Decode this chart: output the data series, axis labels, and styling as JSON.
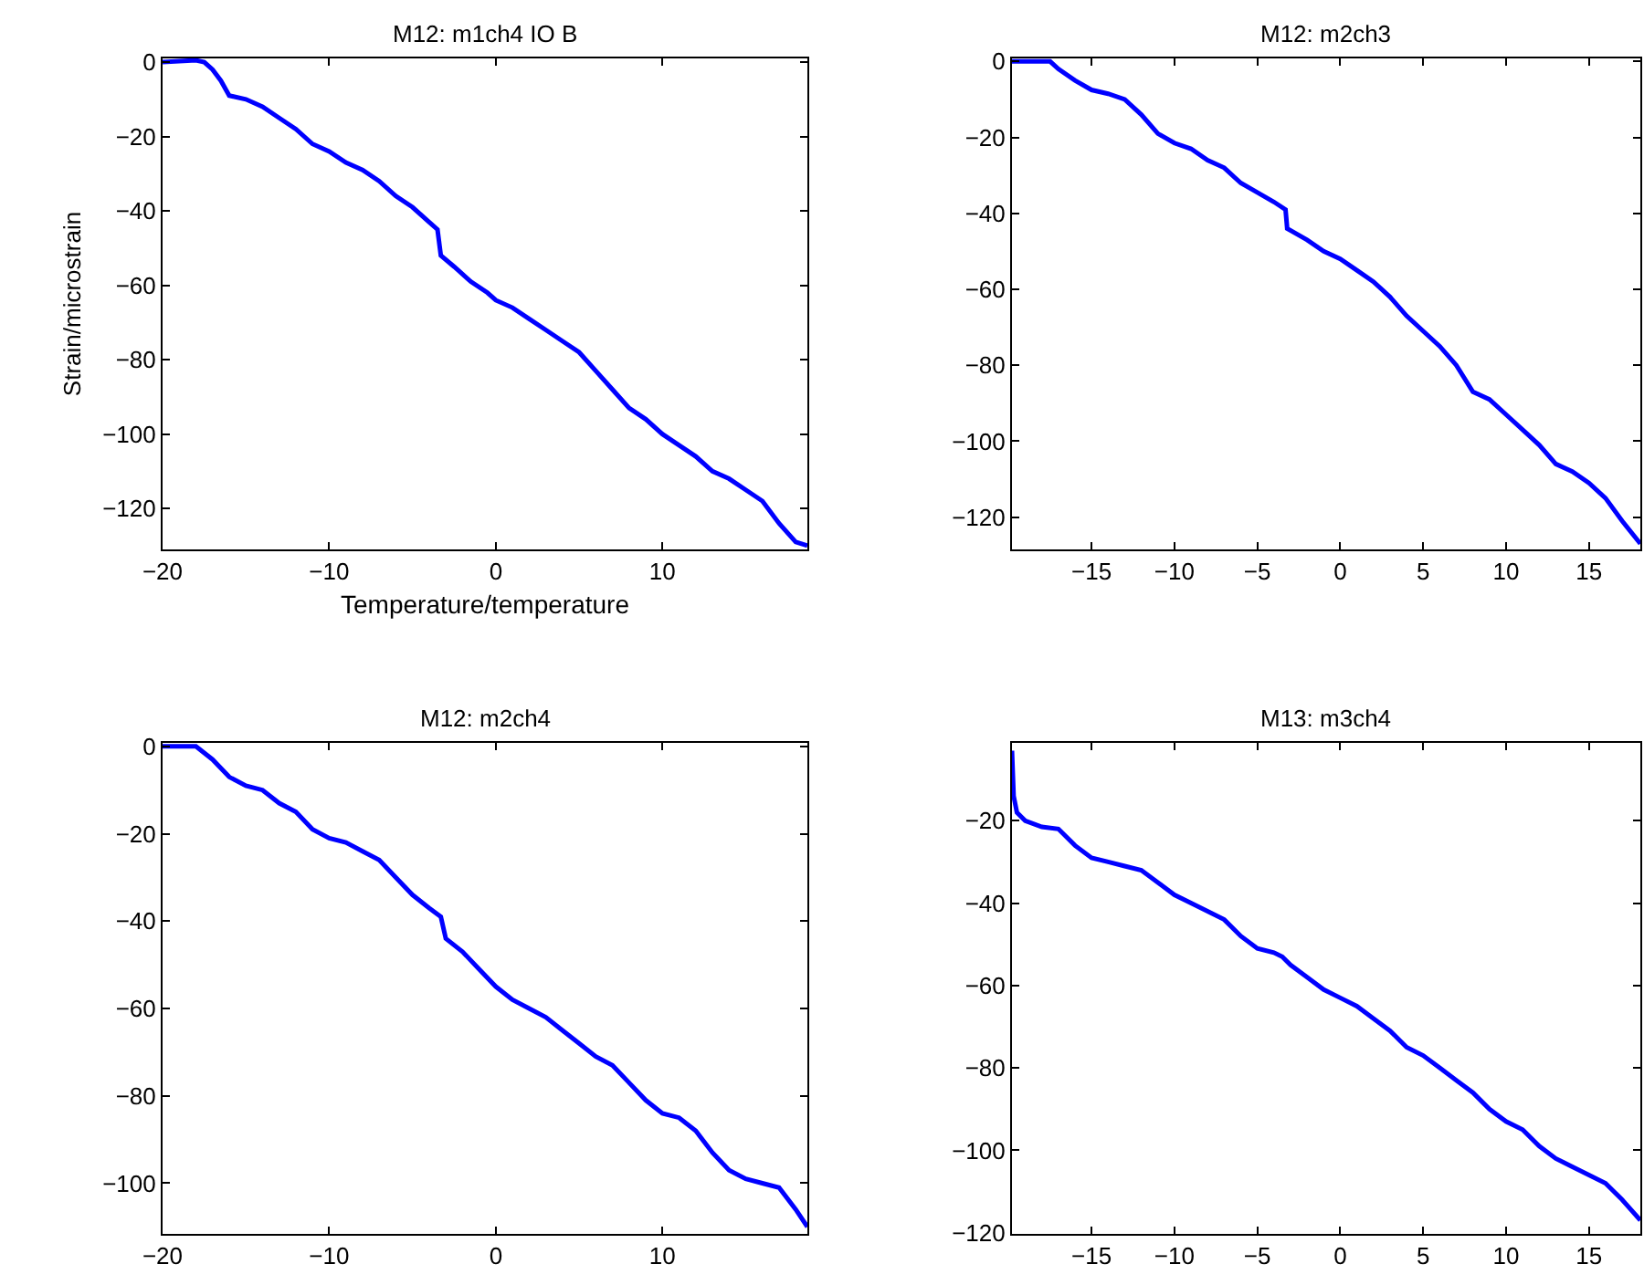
{
  "chart_data": [
    {
      "type": "line",
      "title": "M12: m1ch4 IO B",
      "xlabel": "Temperature/temperature",
      "ylabel": "Strain/microstrain",
      "x": [
        -20,
        -18,
        -17.5,
        -17,
        -16.5,
        -16,
        -15,
        -14,
        -13,
        -12,
        -11,
        -10,
        -9,
        -8,
        -7,
        -6,
        -5,
        -4,
        -3.5,
        -3.3,
        -2.5,
        -1.5,
        -0.5,
        0,
        1,
        2,
        3,
        4,
        5,
        6,
        7,
        8,
        9,
        10,
        11,
        12,
        13,
        14,
        15,
        16,
        17,
        18,
        18.7
      ],
      "series": [
        {
          "color": "#0000ff",
          "values": [
            0,
            0.5,
            0,
            -2,
            -5,
            -9,
            -10,
            -12,
            -15,
            -18,
            -22,
            -24,
            -27,
            -29,
            -32,
            -36,
            -39,
            -43,
            -45,
            -52,
            -55,
            -59,
            -62,
            -64,
            -66,
            -69,
            -72,
            -75,
            -78,
            -83,
            -88,
            -93,
            -96,
            -100,
            -103,
            -106,
            -110,
            -112,
            -115,
            -118,
            -124,
            -129,
            -130
          ]
        }
      ],
      "xlim": [
        -20,
        18.7
      ],
      "ylim": [
        -131,
        1
      ],
      "xticks": [
        -20,
        -10,
        0,
        10
      ],
      "yticks": [
        0,
        -20,
        -40,
        -60,
        -80,
        -100,
        -120
      ]
    },
    {
      "type": "line",
      "title": "M12: m2ch3",
      "x": [
        -19.8,
        -17.5,
        -17,
        -16,
        -15,
        -14,
        -13,
        -12,
        -11,
        -10,
        -9,
        -8,
        -7,
        -6,
        -5,
        -4,
        -3.3,
        -3.2,
        -2,
        -1,
        0,
        1,
        2,
        3,
        4,
        5,
        6,
        7,
        8,
        9,
        10,
        11,
        12,
        13,
        14,
        15,
        16,
        17,
        18.1
      ],
      "series": [
        {
          "color": "#0000ff",
          "values": [
            0,
            0,
            -2,
            -5,
            -7.5,
            -8.5,
            -10,
            -14,
            -19,
            -21.5,
            -23,
            -26,
            -28,
            -32,
            -34.5,
            -37,
            -39,
            -44,
            -47,
            -50,
            -52,
            -55,
            -58,
            -62,
            -67,
            -71,
            -75,
            -80,
            -87,
            -89,
            -93,
            -97,
            -101,
            -106,
            -108,
            -111,
            -115,
            -121,
            -127
          ]
        }
      ],
      "xlim": [
        -19.8,
        18.1
      ],
      "ylim": [
        -128.5,
        0.8
      ],
      "xticks": [
        -15,
        -10,
        -5,
        0,
        5,
        10,
        15
      ],
      "yticks": [
        0,
        -20,
        -40,
        -60,
        -80,
        -100,
        -120
      ]
    },
    {
      "type": "line",
      "title": "M12: m2ch4",
      "x": [
        -20,
        -18,
        -17,
        -16,
        -15,
        -14,
        -13,
        -12,
        -11,
        -10,
        -9,
        -8,
        -7,
        -6,
        -5,
        -4,
        -3.3,
        -3,
        -2,
        -1,
        0,
        1,
        2,
        3,
        4,
        5,
        6,
        7,
        8,
        9,
        10,
        11,
        12,
        13,
        14,
        15,
        16,
        17,
        18,
        18.7
      ],
      "series": [
        {
          "color": "#0000ff",
          "values": [
            0,
            0,
            -3,
            -7,
            -9,
            -10,
            -13,
            -15,
            -19,
            -21,
            -22,
            -24,
            -26,
            -30,
            -34,
            -37,
            -39,
            -44,
            -47,
            -51,
            -55,
            -58,
            -60,
            -62,
            -65,
            -68,
            -71,
            -73,
            -77,
            -81,
            -84,
            -85,
            -88,
            -93,
            -97,
            -99,
            -100,
            -101,
            -106,
            -110
          ]
        }
      ],
      "xlim": [
        -20,
        18.7
      ],
      "ylim": [
        -111.6,
        0.8
      ],
      "xticks": [
        -20,
        -10,
        0,
        10
      ],
      "yticks": [
        0,
        -20,
        -40,
        -60,
        -80,
        -100
      ]
    },
    {
      "type": "line",
      "title": "M13: m3ch4",
      "x": [
        -19.8,
        -19.7,
        -19.5,
        -19,
        -18,
        -17,
        -16,
        -15,
        -14,
        -13,
        -12,
        -11,
        -10,
        -9,
        -8,
        -7,
        -6,
        -5,
        -4,
        -3.5,
        -3,
        -2,
        -1,
        0,
        1,
        2,
        3,
        4,
        5,
        6,
        7,
        8,
        9,
        10,
        11,
        12,
        13,
        14,
        15,
        16,
        17,
        18.1
      ],
      "series": [
        {
          "color": "#0000ff",
          "values": [
            -3,
            -14,
            -18,
            -20,
            -21.5,
            -22,
            -26,
            -29,
            -30,
            -31,
            -32,
            -35,
            -38,
            -40,
            -42,
            -44,
            -48,
            -51,
            -52,
            -53,
            -55,
            -58,
            -61,
            -63,
            -65,
            -68,
            -71,
            -75,
            -77,
            -80,
            -83,
            -86,
            -90,
            -93,
            -95,
            -99,
            -102,
            -104,
            -106,
            -108,
            -112,
            -117
          ]
        }
      ],
      "xlim": [
        -19.8,
        18.1
      ],
      "ylim": [
        -120.3,
        -1.1
      ],
      "xticks": [
        -15,
        -10,
        -5,
        0,
        5,
        10,
        15
      ],
      "yticks": [
        -20,
        -40,
        -60,
        -80,
        -100,
        -120
      ]
    }
  ]
}
